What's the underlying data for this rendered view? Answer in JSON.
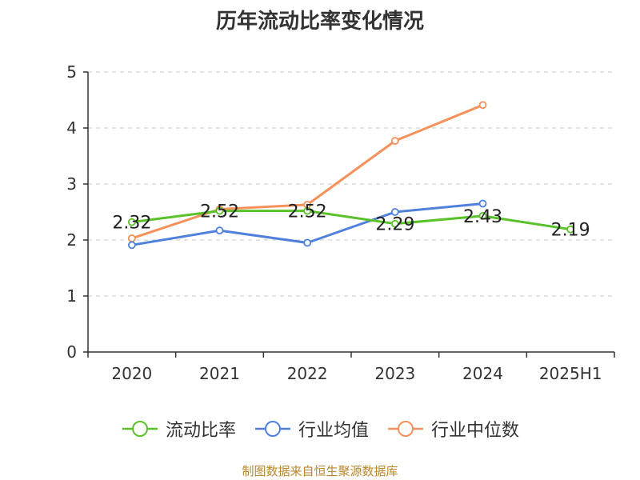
{
  "chart_data": {
    "type": "line",
    "title": "历年流动比率变化情况",
    "categories": [
      "2020",
      "2021",
      "2022",
      "2023",
      "2024",
      "2025H1"
    ],
    "ylim": [
      0,
      5
    ],
    "yticks": [
      0,
      1,
      2,
      3,
      4,
      5
    ],
    "grid": true,
    "legend_position": "bottom",
    "series": [
      {
        "name": "流动比率",
        "color": "#5ac229",
        "values": [
          2.32,
          2.52,
          2.52,
          2.29,
          2.43,
          2.19
        ],
        "labels": [
          "2.32",
          "2.52",
          "2.52",
          "2.29",
          "2.43",
          "2.19"
        ]
      },
      {
        "name": "行业均值",
        "color": "#4f80dc",
        "values": [
          1.91,
          2.17,
          1.95,
          2.5,
          2.65,
          null
        ]
      },
      {
        "name": "行业中位数",
        "color": "#f5915a",
        "values": [
          2.03,
          2.55,
          2.63,
          3.77,
          4.41,
          null
        ]
      }
    ]
  },
  "source": "制图数据来自恒生聚源数据库"
}
